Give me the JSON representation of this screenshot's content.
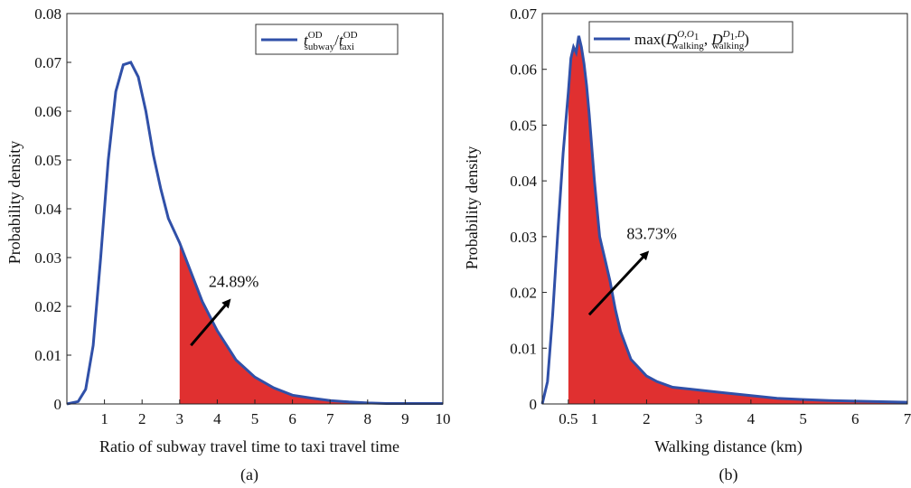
{
  "chart_data": [
    {
      "type": "area",
      "panel_label": "(a)",
      "xlabel": "Ratio of subway travel time to taxi travel time",
      "ylabel": "Probability density",
      "xlim": [
        0,
        10
      ],
      "ylim": [
        0,
        0.08
      ],
      "xticks": [
        "1",
        "2",
        "3",
        "4",
        "5",
        "6",
        "7",
        "8",
        "9",
        "10"
      ],
      "yticks": [
        "0",
        "0.01",
        "0.02",
        "0.03",
        "0.04",
        "0.05",
        "0.06",
        "0.07",
        "0.08"
      ],
      "legend": {
        "position": "top-right",
        "label_main": "t",
        "label_main_sup": "OD",
        "label_main_sub": "subway",
        "label_slash": "/",
        "label_den": "t",
        "label_den_sup": "OD",
        "label_den_sub": "taxi"
      },
      "series": [
        {
          "x": [
            0,
            0.3,
            0.5,
            0.7,
            0.9,
            1.1,
            1.3,
            1.5,
            1.7,
            1.9,
            2.1,
            2.3,
            2.5,
            2.7,
            3.0,
            3.3,
            3.6,
            4.0,
            4.5,
            5.0,
            5.5,
            6.0,
            6.5,
            7.0,
            7.5,
            8.0,
            8.5,
            9.0,
            10.0
          ],
          "y": [
            0,
            0.0005,
            0.003,
            0.012,
            0.03,
            0.05,
            0.064,
            0.0695,
            0.07,
            0.067,
            0.06,
            0.051,
            0.044,
            0.038,
            0.033,
            0.027,
            0.021,
            0.015,
            0.009,
            0.0055,
            0.0033,
            0.0018,
            0.0012,
            0.0007,
            0.0004,
            0.0002,
            0.0001,
            0.0001,
            0.0001
          ],
          "color": "#3050a8"
        }
      ],
      "shaded_region": {
        "from_x": 3,
        "to_x": 10,
        "color": "#e03030"
      },
      "annotation": {
        "text": "24.89%",
        "arrow_from": [
          3.3,
          0.012
        ],
        "arrow_to": [
          4.3,
          0.021
        ]
      }
    },
    {
      "type": "area",
      "panel_label": "(b)",
      "xlabel": "Walking distance (km)",
      "ylabel": "Probability density",
      "xlim": [
        0,
        7
      ],
      "ylim": [
        0,
        0.07
      ],
      "xticks": [
        "0.5",
        "1",
        "2",
        "3",
        "4",
        "5",
        "6",
        "7"
      ],
      "xtick_values": [
        0.5,
        1,
        2,
        3,
        4,
        5,
        6,
        7
      ],
      "yticks": [
        "0",
        "0.01",
        "0.02",
        "0.03",
        "0.04",
        "0.05",
        "0.06",
        "0.07"
      ],
      "legend": {
        "position": "top-right",
        "label_prefix": "max(",
        "label_d1": "D",
        "label_d1_sup": "O,O",
        "label_d1_sup_sub": "1",
        "label_d1_sub": "walking",
        "label_comma": ", ",
        "label_d2": "D",
        "label_d2_sup": "D",
        "label_d2_sup_sub": "1",
        "label_d2_sup_tail": ",D",
        "label_d2_sub": "walking",
        "label_suffix": ")"
      },
      "series": [
        {
          "x": [
            0,
            0.1,
            0.2,
            0.3,
            0.4,
            0.5,
            0.55,
            0.6,
            0.65,
            0.7,
            0.75,
            0.8,
            0.85,
            0.9,
            0.95,
            1.0,
            1.1,
            1.2,
            1.3,
            1.4,
            1.5,
            1.7,
            1.9,
            2.0,
            2.2,
            2.5,
            3.0,
            3.5,
            4.0,
            4.5,
            5.0,
            5.5,
            6.0,
            6.5,
            7.0
          ],
          "y": [
            0,
            0.004,
            0.016,
            0.031,
            0.045,
            0.056,
            0.062,
            0.064,
            0.063,
            0.066,
            0.064,
            0.061,
            0.057,
            0.052,
            0.046,
            0.04,
            0.03,
            0.026,
            0.022,
            0.017,
            0.013,
            0.008,
            0.006,
            0.005,
            0.004,
            0.003,
            0.0025,
            0.002,
            0.0015,
            0.001,
            0.0008,
            0.0006,
            0.0005,
            0.0004,
            0.0003
          ],
          "color": "#3050a8"
        }
      ],
      "shaded_region": {
        "from_x": 0.5,
        "to_x": 7,
        "color": "#e03030"
      },
      "annotation": {
        "text": "83.73%",
        "arrow_from": [
          0.9,
          0.016
        ],
        "arrow_to": [
          2.0,
          0.027
        ]
      }
    }
  ]
}
